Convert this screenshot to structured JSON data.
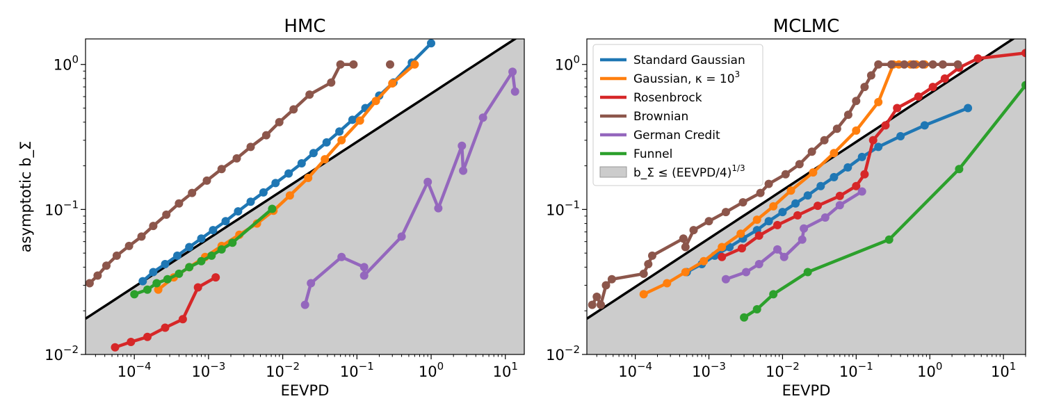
{
  "figure": {
    "legend_entries": [
      {
        "label": "Standard Gaussian",
        "color": "#1f77b4",
        "kind": "line"
      },
      {
        "label": "Gaussian, κ = 10",
        "sup": "3",
        "color": "#ff7f0e",
        "kind": "line"
      },
      {
        "label": "Rosenbrock",
        "color": "#d62728",
        "kind": "line"
      },
      {
        "label": "Brownian",
        "color": "#8c564b",
        "kind": "line"
      },
      {
        "label": "German Credit",
        "color": "#9467bd",
        "kind": "line"
      },
      {
        "label": "Funnel",
        "color": "#2ca02c",
        "kind": "line"
      },
      {
        "label": "b_Σ ≤ (EEVPD/4)",
        "sup": "1/3",
        "color": "#cccccc",
        "kind": "patch"
      }
    ]
  },
  "chart_data": [
    {
      "type": "line",
      "title": "HMC",
      "xlabel": "EEVPD",
      "ylabel": "asymptotic b_Σ",
      "xscale": "log",
      "yscale": "log",
      "xlim": [
        2.2e-05,
        18
      ],
      "ylim": [
        0.01,
        1.5
      ],
      "xticks": [
        {
          "base": "10",
          "exp": "−4",
          "value": 0.0001
        },
        {
          "base": "10",
          "exp": "−3",
          "value": 0.001
        },
        {
          "base": "10",
          "exp": "−2",
          "value": 0.01
        },
        {
          "base": "10",
          "exp": "−1",
          "value": 0.1
        },
        {
          "base": "10",
          "exp": "0",
          "value": 1
        },
        {
          "base": "10",
          "exp": "1",
          "value": 10
        }
      ],
      "yticks": [
        {
          "base": "10",
          "exp": "−2",
          "value": 0.01
        },
        {
          "base": "10",
          "exp": "−1",
          "value": 0.1
        },
        {
          "base": "10",
          "exp": "0",
          "value": 1
        }
      ],
      "bound": {
        "coef": 4,
        "power": 0.3333333
      },
      "legend": "none",
      "series": [
        {
          "name": "Standard Gaussian",
          "color": "#1f77b4",
          "points": [
            [
              0.00013,
              0.032
            ],
            [
              0.00018,
              0.037
            ],
            [
              0.00026,
              0.042
            ],
            [
              0.00038,
              0.048
            ],
            [
              0.00055,
              0.055
            ],
            [
              0.0008,
              0.063
            ],
            [
              0.00115,
              0.072
            ],
            [
              0.0017,
              0.083
            ],
            [
              0.0025,
              0.097
            ],
            [
              0.0037,
              0.113
            ],
            [
              0.0055,
              0.131
            ],
            [
              0.008,
              0.152
            ],
            [
              0.012,
              0.177
            ],
            [
              0.018,
              0.208
            ],
            [
              0.026,
              0.245
            ],
            [
              0.039,
              0.29
            ],
            [
              0.058,
              0.345
            ],
            [
              0.087,
              0.415
            ],
            [
              0.13,
              0.5
            ],
            [
              0.2,
              0.61
            ],
            [
              0.31,
              0.75
            ],
            [
              0.55,
              1.03
            ],
            [
              1.0,
              1.4
            ]
          ]
        },
        {
          "name": "Gaussian, κ = 10^3",
          "color": "#ff7f0e",
          "points": [
            [
              0.00021,
              0.028
            ],
            [
              0.00034,
              0.034
            ],
            [
              0.00055,
              0.04
            ],
            [
              0.0009,
              0.047
            ],
            [
              0.0015,
              0.056
            ],
            [
              0.0026,
              0.067
            ],
            [
              0.0045,
              0.08
            ],
            [
              0.0075,
              0.098
            ],
            [
              0.0125,
              0.125
            ],
            [
              0.022,
              0.165
            ],
            [
              0.037,
              0.222
            ],
            [
              0.062,
              0.3
            ],
            [
              0.11,
              0.41
            ],
            [
              0.18,
              0.56
            ],
            [
              0.3,
              0.74
            ],
            [
              0.6,
              1.0
            ]
          ]
        },
        {
          "name": "Rosenbrock",
          "color": "#d62728",
          "points": [
            [
              5.5e-05,
              0.0112
            ],
            [
              9e-05,
              0.0122
            ],
            [
              0.00015,
              0.0132
            ],
            [
              0.00026,
              0.0153
            ],
            [
              0.00045,
              0.0175
            ],
            [
              0.00072,
              0.029
            ],
            [
              0.00125,
              0.034
            ]
          ]
        },
        {
          "name": "Brownian",
          "color": "#8c564b",
          "points": [
            [
              2.5e-05,
              0.031
            ],
            [
              3.2e-05,
              0.035
            ],
            [
              4.2e-05,
              0.041
            ],
            [
              5.8e-05,
              0.048
            ],
            [
              8.5e-05,
              0.056
            ],
            [
              0.000125,
              0.065
            ],
            [
              0.00018,
              0.077
            ],
            [
              0.00027,
              0.092
            ],
            [
              0.0004,
              0.11
            ],
            [
              0.0006,
              0.13
            ],
            [
              0.00095,
              0.158
            ],
            [
              0.0015,
              0.19
            ],
            [
              0.0024,
              0.225
            ],
            [
              0.0037,
              0.27
            ],
            [
              0.006,
              0.325
            ],
            [
              0.009,
              0.4
            ],
            [
              0.014,
              0.49
            ],
            [
              0.023,
              0.62
            ],
            [
              0.045,
              0.75
            ],
            [
              0.06,
              1.0
            ],
            [
              0.09,
              1.0
            ],
            null,
            [
              0.28,
              1.0
            ]
          ]
        },
        {
          "name": "German Credit",
          "color": "#9467bd",
          "points": [
            [
              0.02,
              0.022
            ],
            [
              0.024,
              0.031
            ],
            [
              0.062,
              0.047
            ],
            [
              0.125,
              0.04
            ],
            [
              0.125,
              0.035
            ],
            [
              0.4,
              0.065
            ],
            [
              0.9,
              0.155
            ],
            [
              1.25,
              0.102
            ],
            [
              2.6,
              0.275
            ],
            [
              2.7,
              0.185
            ],
            [
              5.0,
              0.43
            ],
            [
              12.5,
              0.89
            ],
            [
              13.5,
              0.65
            ]
          ]
        },
        {
          "name": "Funnel",
          "color": "#2ca02c",
          "points": [
            [
              0.0001,
              0.026
            ],
            [
              0.00015,
              0.028
            ],
            [
              0.0002,
              0.031
            ],
            [
              0.00028,
              0.033
            ],
            [
              0.0004,
              0.036
            ],
            [
              0.00055,
              0.04
            ],
            [
              0.0008,
              0.044
            ],
            [
              0.0011,
              0.048
            ],
            [
              0.0015,
              0.053
            ],
            [
              0.0021,
              0.059
            ],
            [
              0.0072,
              0.101
            ]
          ]
        }
      ]
    },
    {
      "type": "line",
      "title": "MCLMC",
      "xlabel": "EEVPD",
      "ylabel": "",
      "xscale": "log",
      "yscale": "log",
      "xlim": [
        2.2e-05,
        20
      ],
      "ylim": [
        0.01,
        1.5
      ],
      "xticks": [
        {
          "base": "10",
          "exp": "−4",
          "value": 0.0001
        },
        {
          "base": "10",
          "exp": "−3",
          "value": 0.001
        },
        {
          "base": "10",
          "exp": "−2",
          "value": 0.01
        },
        {
          "base": "10",
          "exp": "−1",
          "value": 0.1
        },
        {
          "base": "10",
          "exp": "0",
          "value": 1
        },
        {
          "base": "10",
          "exp": "1",
          "value": 10
        }
      ],
      "yticks": [
        {
          "base": "10",
          "exp": "−2",
          "value": 0.01
        },
        {
          "base": "10",
          "exp": "−1",
          "value": 0.1
        },
        {
          "base": "10",
          "exp": "0",
          "value": 1
        }
      ],
      "bound": {
        "coef": 4,
        "power": 0.3333333
      },
      "legend": "upper-left",
      "series": [
        {
          "name": "Standard Gaussian",
          "color": "#1f77b4",
          "points": [
            [
              0.0005,
              0.037
            ],
            [
              0.0008,
              0.042
            ],
            [
              0.0012,
              0.048
            ],
            [
              0.0019,
              0.055
            ],
            [
              0.0029,
              0.063
            ],
            [
              0.0045,
              0.072
            ],
            [
              0.0065,
              0.083
            ],
            [
              0.01,
              0.096
            ],
            [
              0.015,
              0.11
            ],
            [
              0.022,
              0.125
            ],
            [
              0.033,
              0.145
            ],
            [
              0.05,
              0.167
            ],
            [
              0.077,
              0.195
            ],
            [
              0.12,
              0.23
            ],
            [
              0.2,
              0.27
            ],
            [
              0.4,
              0.32
            ],
            [
              0.85,
              0.38
            ],
            [
              3.3,
              0.5
            ]
          ]
        },
        {
          "name": "Gaussian, κ = 10^3",
          "color": "#ff7f0e",
          "points": [
            [
              0.00013,
              0.026
            ],
            [
              0.00027,
              0.031
            ],
            [
              0.00048,
              0.037
            ],
            [
              0.00085,
              0.044
            ],
            [
              0.0015,
              0.055
            ],
            [
              0.0027,
              0.068
            ],
            [
              0.0045,
              0.085
            ],
            [
              0.0075,
              0.105
            ],
            [
              0.013,
              0.135
            ],
            [
              0.026,
              0.18
            ],
            [
              0.05,
              0.245
            ],
            [
              0.1,
              0.35
            ],
            [
              0.2,
              0.55
            ],
            [
              0.32,
              1.0
            ],
            [
              0.38,
              1.0
            ],
            [
              0.55,
              1.0
            ],
            [
              0.65,
              1.0
            ],
            [
              0.85,
              1.0
            ]
          ]
        },
        {
          "name": "Rosenbrock",
          "color": "#d62728",
          "points": [
            [
              0.0015,
              0.047
            ],
            [
              0.0028,
              0.054
            ],
            [
              0.0048,
              0.066
            ],
            [
              0.0085,
              0.078
            ],
            [
              0.016,
              0.091
            ],
            [
              0.03,
              0.106
            ],
            [
              0.06,
              0.124
            ],
            [
              0.1,
              0.145
            ],
            [
              0.13,
              0.175
            ],
            [
              0.17,
              0.3
            ],
            [
              0.25,
              0.38
            ],
            [
              0.36,
              0.5
            ],
            [
              0.7,
              0.6
            ],
            [
              1.1,
              0.7
            ],
            [
              1.6,
              0.8
            ],
            [
              2.5,
              0.95
            ],
            [
              4.5,
              1.1
            ],
            [
              20,
              1.2
            ]
          ]
        },
        {
          "name": "Brownian",
          "color": "#8c564b",
          "points": [
            [
              2.6e-05,
              0.022
            ],
            [
              3e-05,
              0.025
            ],
            [
              3.4e-05,
              0.022
            ],
            [
              4e-05,
              0.03
            ],
            [
              4.8e-05,
              0.033
            ],
            [
              0.00013,
              0.036
            ],
            [
              0.00015,
              0.042
            ],
            [
              0.00017,
              0.048
            ],
            [
              0.00045,
              0.063
            ],
            [
              0.00048,
              0.055
            ],
            [
              0.00062,
              0.072
            ],
            [
              0.001,
              0.083
            ],
            [
              0.0017,
              0.096
            ],
            [
              0.0029,
              0.112
            ],
            [
              0.005,
              0.13
            ],
            [
              0.0065,
              0.15
            ],
            [
              0.011,
              0.175
            ],
            [
              0.017,
              0.205
            ],
            [
              0.025,
              0.25
            ],
            [
              0.037,
              0.3
            ],
            [
              0.055,
              0.36
            ],
            [
              0.078,
              0.45
            ],
            [
              0.1,
              0.56
            ],
            [
              0.13,
              0.7
            ],
            [
              0.16,
              0.84
            ],
            [
              0.2,
              1.0
            ],
            [
              0.3,
              1.0
            ],
            [
              0.45,
              1.0
            ],
            [
              0.6,
              1.0
            ],
            [
              0.8,
              1.0
            ],
            [
              1.1,
              1.0
            ],
            [
              1.5,
              1.0
            ],
            [
              2.4,
              1.0
            ]
          ]
        },
        {
          "name": "German Credit",
          "color": "#9467bd",
          "points": [
            [
              0.0017,
              0.033
            ],
            [
              0.0032,
              0.037
            ],
            [
              0.0048,
              0.042
            ],
            [
              0.0085,
              0.053
            ],
            [
              0.0105,
              0.047
            ],
            [
              0.0185,
              0.062
            ],
            [
              0.0195,
              0.074
            ],
            [
              0.038,
              0.088
            ],
            [
              0.06,
              0.107
            ],
            [
              0.12,
              0.133
            ]
          ]
        },
        {
          "name": "Funnel",
          "color": "#2ca02c",
          "points": [
            [
              0.003,
              0.018
            ],
            [
              0.0045,
              0.0205
            ],
            [
              0.0075,
              0.026
            ],
            [
              0.022,
              0.037
            ],
            [
              0.28,
              0.062
            ],
            [
              2.5,
              0.19
            ],
            [
              20,
              0.72
            ]
          ]
        }
      ]
    }
  ]
}
